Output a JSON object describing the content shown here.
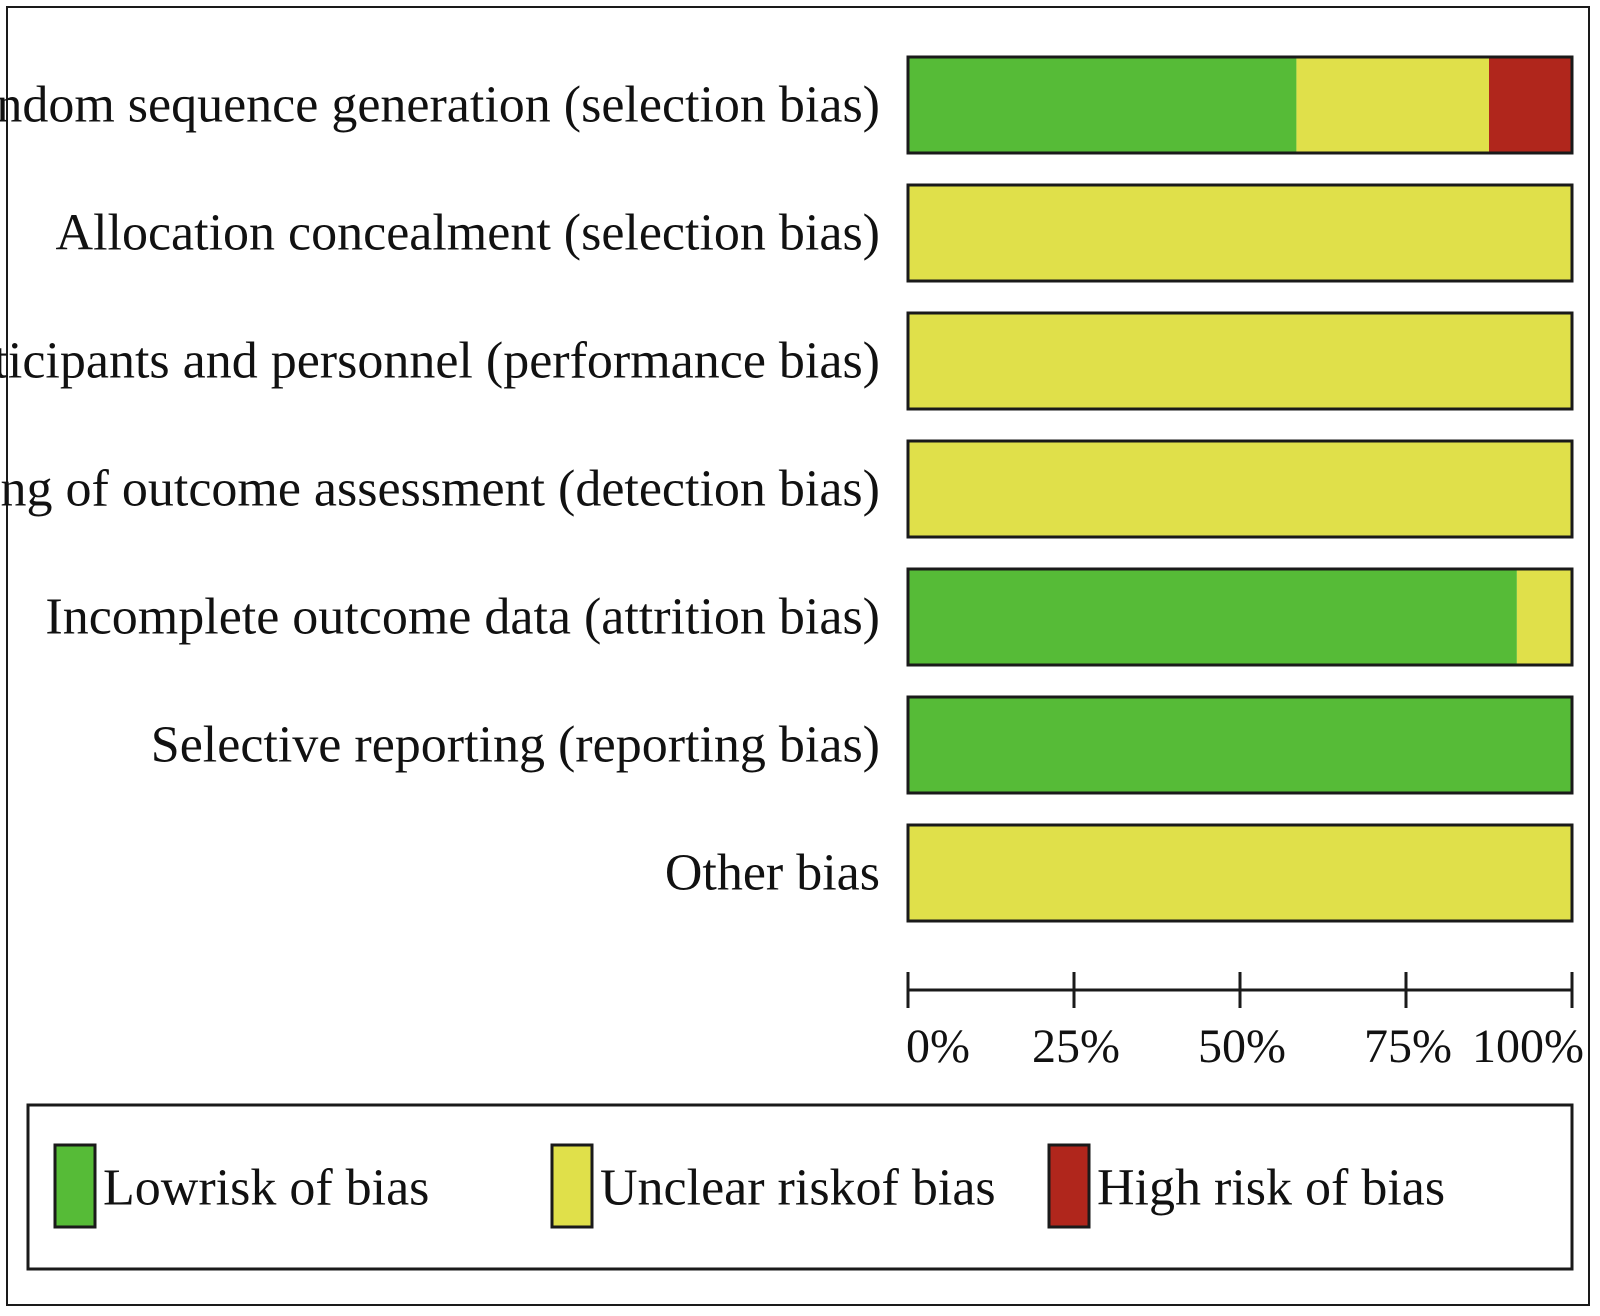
{
  "chart_data": {
    "type": "bar",
    "orientation": "horizontal",
    "stacked": true,
    "categories": [
      "Random sequence generation (selection bias)",
      "Allocation concealment (selection bias)",
      "Blinding of participants and personnel (performance bias)",
      "Blinding of outcome assessment (detection bias)",
      "Incomplete outcome data (attrition bias)",
      "Selective reporting (reporting bias)",
      "Other bias"
    ],
    "series": [
      {
        "name": "Lowrisk of bias",
        "color": "#56bb37",
        "values": [
          58.5,
          0,
          0,
          0,
          91.7,
          100,
          0
        ]
      },
      {
        "name": "Unclear riskof bias",
        "color": "#e0e04a",
        "values": [
          29,
          100,
          100,
          100,
          8.3,
          0,
          100
        ]
      },
      {
        "name": "High risk of bias",
        "color": "#b0261c",
        "values": [
          12.5,
          0,
          0,
          0,
          0,
          0,
          0
        ]
      }
    ],
    "xlim": [
      0,
      100
    ],
    "ticks": [
      0,
      25,
      50,
      75,
      100
    ],
    "tick_labels": [
      "0%",
      "25%",
      "50%",
      "75%",
      "100%"
    ],
    "grid": false,
    "legend_position": "bottom"
  }
}
